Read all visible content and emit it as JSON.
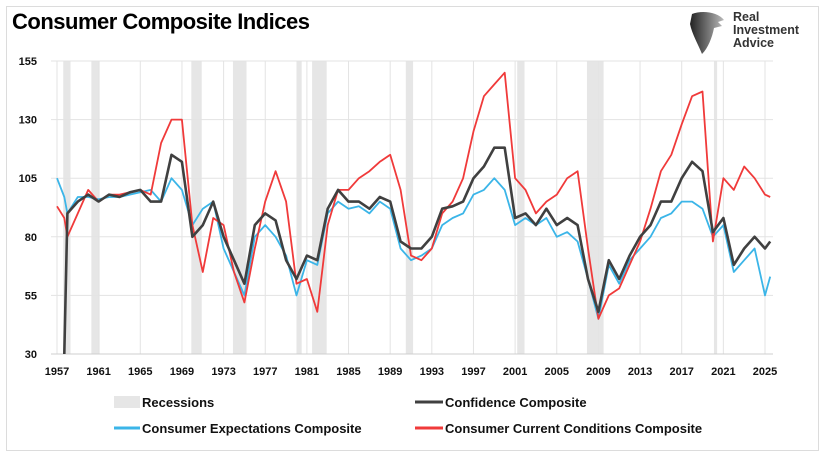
{
  "chart_data": {
    "type": "line",
    "title": "Consumer Composite Indices",
    "xlabel": "",
    "ylabel": "",
    "xlim": [
      1957,
      2025.8
    ],
    "ylim": [
      30,
      155
    ],
    "yticks": [
      30,
      55,
      80,
      105,
      130,
      155
    ],
    "xticks": [
      1957,
      1961,
      1965,
      1969,
      1973,
      1977,
      1981,
      1985,
      1989,
      1993,
      1997,
      2001,
      2005,
      2009,
      2013,
      2017,
      2021,
      2025
    ],
    "grid": "vertical and horizontal",
    "legend_position": "bottom",
    "recessions_label": "Recessions",
    "recessions": [
      [
        1957.6,
        1958.3
      ],
      [
        1960.3,
        1961.1
      ],
      [
        1969.9,
        1970.9
      ],
      [
        1973.9,
        1975.2
      ],
      [
        1980.0,
        1980.5
      ],
      [
        1981.5,
        1982.9
      ],
      [
        1990.5,
        1991.2
      ],
      [
        2001.2,
        2001.9
      ],
      [
        2007.9,
        2009.5
      ],
      [
        2020.1,
        2020.4
      ]
    ],
    "x": [
      1957,
      1957.7,
      1958,
      1959,
      1960,
      1961,
      1962,
      1963,
      1964,
      1965,
      1966,
      1967,
      1968,
      1969,
      1970,
      1971,
      1972,
      1973,
      1974,
      1975,
      1976,
      1977,
      1978,
      1979,
      1980,
      1981,
      1982,
      1983,
      1984,
      1985,
      1986,
      1987,
      1988,
      1989,
      1990,
      1991,
      1992,
      1993,
      1994,
      1995,
      1996,
      1997,
      1998,
      1999,
      2000,
      2001,
      2002,
      2003,
      2004,
      2005,
      2006,
      2007,
      2008,
      2009,
      2010,
      2011,
      2012,
      2013,
      2014,
      2015,
      2016,
      2017,
      2018,
      2019,
      2020,
      2021,
      2022,
      2023,
      2024,
      2025,
      2025.5
    ],
    "series": [
      {
        "name": "Confidence Composite",
        "color": "#404040",
        "values": [
          null,
          30,
          90,
          95,
          98,
          95,
          98,
          97,
          99,
          100,
          95,
          95,
          115,
          112,
          80,
          85,
          95,
          80,
          70,
          60,
          85,
          90,
          87,
          70,
          62,
          72,
          70,
          92,
          100,
          95,
          95,
          92,
          97,
          95,
          78,
          75,
          75,
          80,
          92,
          93,
          95,
          105,
          110,
          118,
          118,
          88,
          90,
          85,
          92,
          85,
          88,
          85,
          62,
          48,
          70,
          62,
          72,
          80,
          85,
          95,
          95,
          105,
          112,
          108,
          82,
          88,
          68,
          75,
          80,
          75,
          78
        ]
      },
      {
        "name": "Consumer Expectations Composite",
        "color": "#3bb5e8",
        "values": [
          105,
          97,
          90,
          97,
          97,
          96,
          97,
          97,
          98,
          99,
          100,
          95,
          105,
          100,
          85,
          92,
          95,
          75,
          65,
          55,
          80,
          85,
          80,
          72,
          55,
          70,
          68,
          90,
          95,
          92,
          93,
          90,
          95,
          92,
          75,
          70,
          72,
          75,
          85,
          88,
          90,
          98,
          100,
          105,
          100,
          85,
          88,
          85,
          88,
          80,
          82,
          78,
          62,
          45,
          68,
          60,
          70,
          75,
          80,
          88,
          90,
          95,
          95,
          92,
          80,
          85,
          65,
          70,
          75,
          55,
          63
        ]
      },
      {
        "name": "Consumer Current Conditions Composite",
        "color": "#f03a3a",
        "values": [
          93,
          88,
          80,
          90,
          100,
          95,
          98,
          98,
          99,
          100,
          98,
          120,
          130,
          130,
          85,
          65,
          88,
          85,
          65,
          52,
          75,
          95,
          108,
          95,
          60,
          62,
          48,
          85,
          100,
          100,
          105,
          108,
          112,
          115,
          100,
          72,
          70,
          75,
          90,
          95,
          105,
          125,
          140,
          145,
          150,
          105,
          100,
          90,
          95,
          98,
          105,
          108,
          75,
          45,
          55,
          58,
          68,
          78,
          92,
          108,
          115,
          128,
          140,
          142,
          78,
          105,
          100,
          110,
          105,
          98,
          97
        ]
      }
    ]
  },
  "logo": {
    "line1": "Real",
    "line2": "Investment",
    "line3": "Advice"
  }
}
